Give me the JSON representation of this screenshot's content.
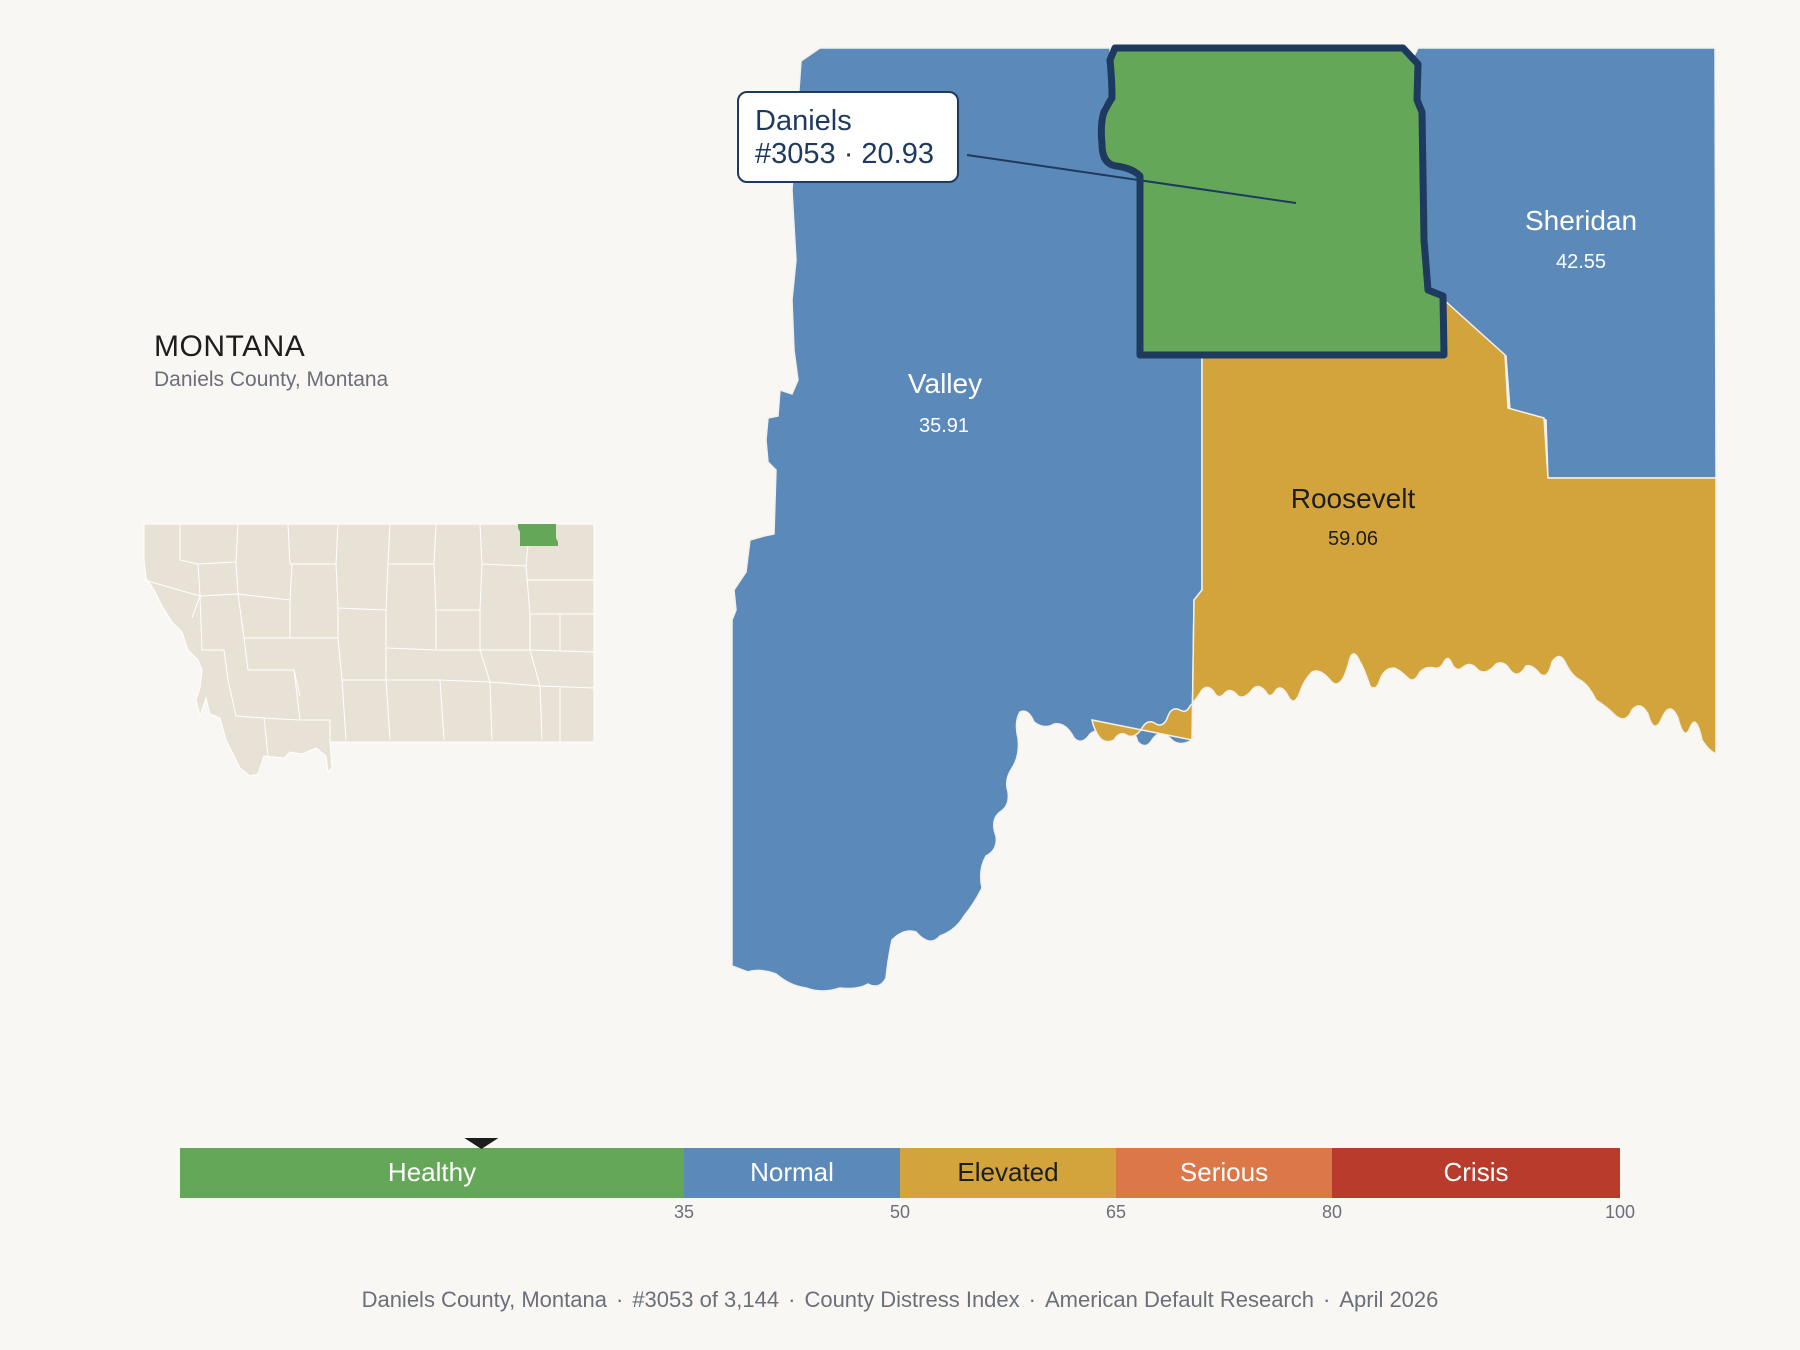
{
  "state": {
    "name": "MONTANA",
    "subtitle": "Daniels County, Montana"
  },
  "counties": [
    {
      "id": "valley",
      "name": "Valley",
      "score": "35.91",
      "tier": "Normal",
      "color": "#5b89b9"
    },
    {
      "id": "daniels",
      "name": "Daniels",
      "score": "20.93",
      "tier": "Healthy",
      "color": "#65a758",
      "selected": true
    },
    {
      "id": "sheridan",
      "name": "Sheridan",
      "score": "42.55",
      "tier": "Normal",
      "color": "#5b89b9"
    },
    {
      "id": "roosevelt",
      "name": "Roosevelt",
      "score": "59.06",
      "tier": "Elevated",
      "color": "#d3a43b"
    }
  ],
  "callout": {
    "name": "Daniels",
    "detail": "#3053 · 20.93"
  },
  "legend": {
    "marker_value": 20.93,
    "tiers": [
      {
        "label": "Healthy",
        "from": 0,
        "to": 35,
        "color": "#65a758"
      },
      {
        "label": "Normal",
        "from": 35,
        "to": 50,
        "color": "#5b89b9"
      },
      {
        "label": "Elevated",
        "from": 50,
        "to": 65,
        "color": "#d3a43b"
      },
      {
        "label": "Serious",
        "from": 65,
        "to": 80,
        "color": "#dc7748"
      },
      {
        "label": "Crisis",
        "from": 80,
        "to": 100,
        "color": "#b93b2c"
      }
    ],
    "ticks": [
      "35",
      "50",
      "65",
      "80",
      "100"
    ]
  },
  "footer": {
    "place": "Daniels County, Montana",
    "rank": "#3053 of 3,144",
    "index": "County Distress Index",
    "source": "American Default Research",
    "date": "April 2026"
  },
  "colors": {
    "selected_outline": "#1e3a5f",
    "locator_fill": "#e8e2d6",
    "locator_highlight": "#65a758",
    "background": "#f9f7f3"
  }
}
